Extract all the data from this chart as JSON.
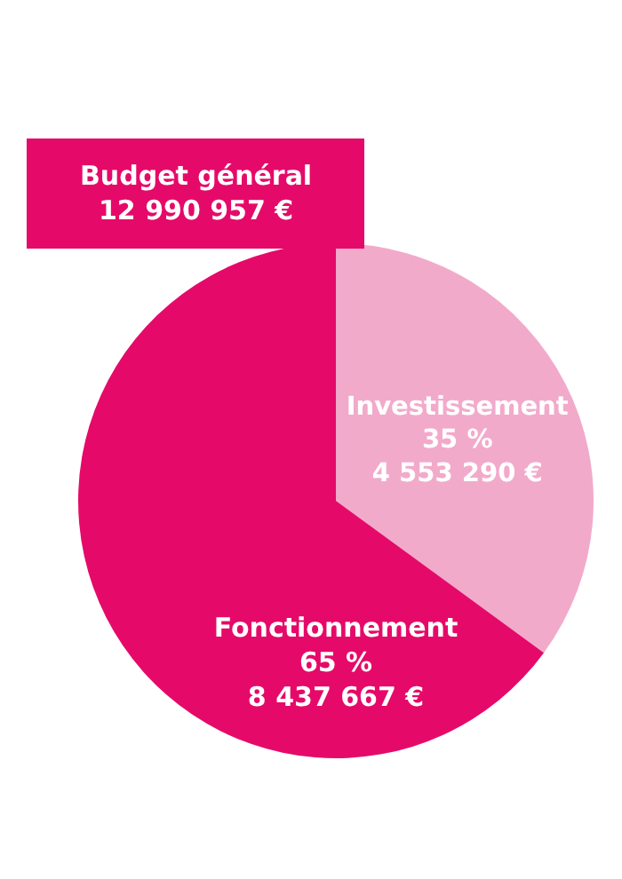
{
  "chart_data": {
    "type": "pie",
    "title": "Budget général",
    "subtitle": "12 990 957 €",
    "categories": [
      "Investissement",
      "Fonctionnement"
    ],
    "values": [
      4553290,
      8437667
    ],
    "value_labels": [
      "35 %\n4 553 290 €",
      "65 %\n8 437 667 €"
    ],
    "colors": [
      "#f2aacb",
      "#e50a69"
    ],
    "legend": false
  }
}
